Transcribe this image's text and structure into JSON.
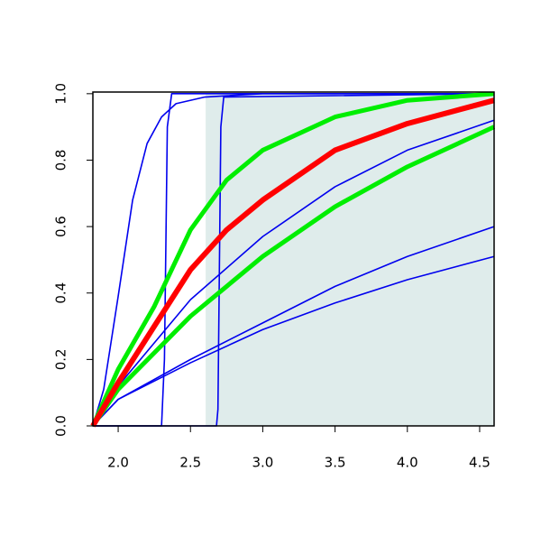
{
  "chart_data": {
    "type": "line",
    "xlim": [
      1.825,
      4.6
    ],
    "ylim": [
      0,
      1.005
    ],
    "xticks": [
      {
        "value": 2,
        "label": "2.0"
      },
      2.5,
      {
        "value": 3,
        "label": "3.0"
      },
      3.5,
      {
        "value": 4,
        "label": "4.0"
      },
      4.5
    ],
    "yticks": [
      {
        "value": 0,
        "label": "0.0"
      },
      0.2,
      0.4,
      0.6,
      0.8,
      {
        "value": 1,
        "label": "1.0"
      }
    ],
    "shaded_region": {
      "xmin": 2.605,
      "xmax": 4.6,
      "ymin": 0,
      "ymax": 1,
      "color": "#dfeceb"
    },
    "series": [
      {
        "color": "#0000ee",
        "linewidth": 1.6,
        "x": [
          1.825,
          1.9,
          2.0,
          2.1,
          2.2,
          2.3,
          2.4,
          2.6,
          3.0,
          4.6
        ],
        "values": [
          0,
          0.11,
          0.39,
          0.68,
          0.85,
          0.93,
          0.97,
          0.99,
          1.0,
          1.0
        ]
      },
      {
        "color": "#0000ee",
        "linewidth": 1.6,
        "x": [
          1.825,
          2.3,
          2.32,
          2.34,
          2.37,
          4.6
        ],
        "values": [
          0,
          0,
          0.2,
          0.9,
          1.0,
          1.0
        ]
      },
      {
        "color": "#0000ee",
        "linewidth": 1.6,
        "x": [
          1.825,
          2.68,
          2.69,
          2.71,
          2.73,
          4.6
        ],
        "values": [
          0,
          0,
          0.05,
          0.9,
          0.99,
          1.0
        ]
      },
      {
        "color": "#0000ee",
        "linewidth": 1.6,
        "x": [
          1.825,
          2.0,
          2.5,
          3.0,
          3.5,
          4.0,
          4.6
        ],
        "values": [
          0,
          0.12,
          0.38,
          0.57,
          0.72,
          0.83,
          0.92
        ]
      },
      {
        "color": "#0000ee",
        "linewidth": 1.6,
        "x": [
          1.825,
          2.0,
          2.5,
          3.0,
          3.5,
          4.0,
          4.6
        ],
        "values": [
          0,
          0.08,
          0.2,
          0.31,
          0.42,
          0.51,
          0.6
        ]
      },
      {
        "color": "#0000ee",
        "linewidth": 1.6,
        "x": [
          1.825,
          2.0,
          2.5,
          3.0,
          3.5,
          4.0,
          4.6
        ],
        "values": [
          0,
          0.08,
          0.19,
          0.29,
          0.37,
          0.44,
          0.51
        ]
      },
      {
        "color": "#00ee00",
        "linewidth": 5,
        "x": [
          1.825,
          2.0,
          2.25,
          2.5,
          2.75,
          3.0,
          3.5,
          4.0,
          4.6
        ],
        "values": [
          0,
          0.17,
          0.36,
          0.59,
          0.74,
          0.83,
          0.93,
          0.98,
          1.0
        ]
      },
      {
        "color": "#00ee00",
        "linewidth": 5,
        "x": [
          1.825,
          2.0,
          2.5,
          3.0,
          3.5,
          4.0,
          4.6
        ],
        "values": [
          0,
          0.11,
          0.33,
          0.51,
          0.66,
          0.78,
          0.9
        ]
      },
      {
        "color": "#ff0000",
        "linewidth": 6,
        "x": [
          1.825,
          2.0,
          2.25,
          2.5,
          2.75,
          3.0,
          3.5,
          4.0,
          4.6
        ],
        "values": [
          0,
          0.13,
          0.3,
          0.47,
          0.59,
          0.68,
          0.83,
          0.91,
          0.98
        ]
      }
    ]
  }
}
